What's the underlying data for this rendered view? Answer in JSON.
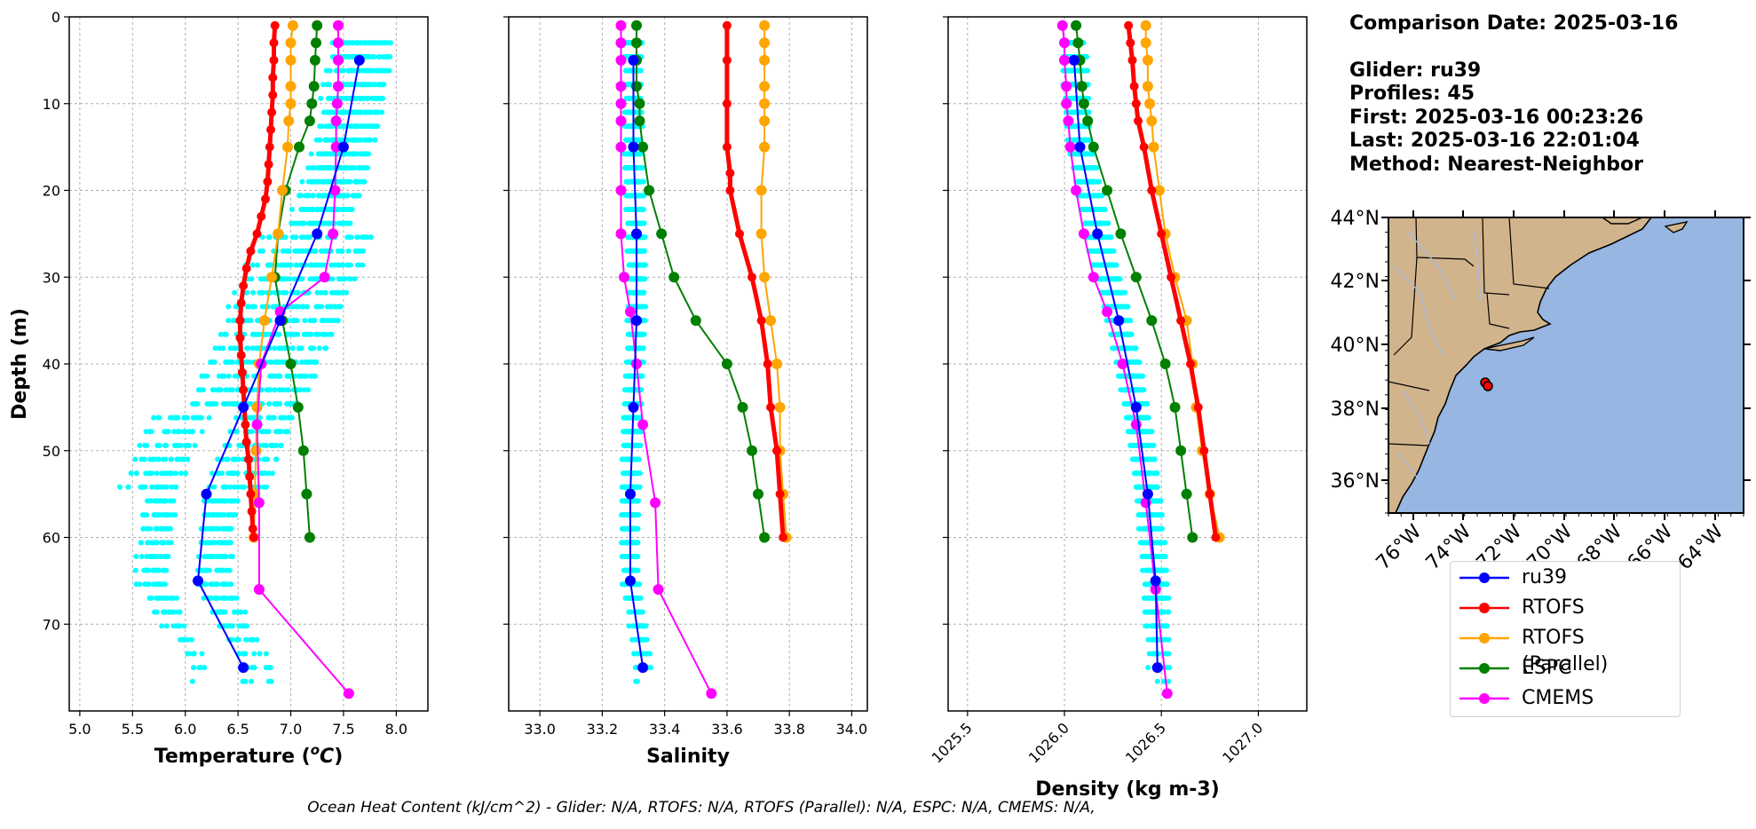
{
  "info": {
    "date_line": "Comparison Date: 2025-03-16",
    "glider_line": "Glider: ru39",
    "profiles_line": "Profiles: 45",
    "first_line": "First: 2025-03-16 00:23:26",
    "last_line": "Last: 2025-03-16 22:01:04",
    "method_line": "Method: Nearest-Neighbor"
  },
  "footer": "Ocean Heat Content (kJ/cm^2) - Glider: N/A,  RTOFS: N/A,  RTOFS (Parallel): N/A,  ESPC: N/A,  CMEMS: N/A,",
  "colors": {
    "ru39": "#0000ff",
    "rtofs": "#ff0000",
    "rtofs_parallel": "#ffa500",
    "espc": "#008000",
    "cmems": "#ff00ff",
    "glider_points": "#00ffff",
    "land": "#d2b48c",
    "ocean": "#97b6e1"
  },
  "legend": [
    "ru39",
    "RTOFS",
    "RTOFS (Parallel)",
    "ESPC",
    "CMEMS"
  ],
  "chart_data": [
    {
      "type": "line",
      "xlabel": "Temperature (oC)",
      "ylabel": "Depth (m)",
      "xlim": [
        4.9,
        8.3
      ],
      "ylim": [
        80,
        0
      ],
      "xticks": [
        "5.0",
        "5.5",
        "6.0",
        "6.5",
        "7.0",
        "7.5",
        "8.0"
      ],
      "yticks": [
        "0",
        "10",
        "20",
        "30",
        "40",
        "50",
        "60",
        "70"
      ],
      "grid": true,
      "series": [
        {
          "name": "ru39",
          "depth": [
            5,
            15,
            25,
            35,
            45,
            55,
            65,
            75
          ],
          "values": [
            7.65,
            7.5,
            7.25,
            6.9,
            6.55,
            6.2,
            6.12,
            6.55
          ]
        },
        {
          "name": "RTOFS",
          "depth": [
            1,
            3,
            5,
            7,
            9,
            11,
            13,
            15,
            17,
            19,
            21,
            23,
            25,
            27,
            29,
            31,
            33,
            35,
            37,
            39,
            41,
            43,
            45,
            47,
            49,
            51,
            53,
            55,
            57,
            59,
            60
          ],
          "values": [
            6.85,
            6.84,
            6.84,
            6.83,
            6.83,
            6.82,
            6.81,
            6.8,
            6.79,
            6.78,
            6.76,
            6.72,
            6.68,
            6.62,
            6.58,
            6.55,
            6.53,
            6.52,
            6.52,
            6.53,
            6.54,
            6.55,
            6.56,
            6.57,
            6.58,
            6.6,
            6.61,
            6.62,
            6.63,
            6.64,
            6.65
          ]
        },
        {
          "name": "RTOFS (Parallel)",
          "depth": [
            1,
            3,
            5,
            8,
            10,
            12,
            15,
            20,
            25,
            30,
            35,
            40,
            45,
            50,
            55,
            60
          ],
          "values": [
            7.02,
            7.0,
            7.0,
            7.0,
            7.0,
            6.98,
            6.97,
            6.92,
            6.88,
            6.82,
            6.75,
            6.7,
            6.68,
            6.67,
            6.66,
            6.65
          ]
        },
        {
          "name": "ESPC",
          "depth": [
            1,
            3,
            5,
            8,
            10,
            12,
            15,
            20,
            25,
            30,
            35,
            40,
            45,
            50,
            55,
            60
          ],
          "values": [
            7.25,
            7.24,
            7.23,
            7.22,
            7.2,
            7.18,
            7.08,
            6.95,
            6.88,
            6.85,
            6.92,
            7.0,
            7.07,
            7.12,
            7.15,
            7.18
          ]
        },
        {
          "name": "CMEMS",
          "depth": [
            1,
            3,
            5,
            8,
            10,
            12,
            15,
            20,
            25,
            30,
            34,
            40,
            47,
            56,
            66,
            78
          ],
          "values": [
            7.45,
            7.45,
            7.45,
            7.45,
            7.44,
            7.43,
            7.43,
            7.42,
            7.4,
            7.32,
            6.9,
            6.72,
            6.68,
            6.7,
            6.7,
            7.55
          ]
        }
      ]
    },
    {
      "type": "line",
      "xlabel": "Salinity",
      "xlim": [
        32.9,
        34.05
      ],
      "ylim": [
        80,
        0
      ],
      "xticks": [
        "33.0",
        "33.2",
        "33.4",
        "33.6",
        "33.8",
        "34.0"
      ],
      "grid": true,
      "series": [
        {
          "name": "ru39",
          "depth": [
            5,
            15,
            25,
            35,
            45,
            55,
            65,
            75
          ],
          "values": [
            33.3,
            33.3,
            33.31,
            33.31,
            33.3,
            33.29,
            33.29,
            33.33
          ]
        },
        {
          "name": "RTOFS",
          "depth": [
            1,
            5,
            10,
            15,
            18,
            20,
            25,
            30,
            35,
            40,
            45,
            50,
            55,
            60
          ],
          "values": [
            33.6,
            33.6,
            33.6,
            33.6,
            33.61,
            33.61,
            33.64,
            33.68,
            33.71,
            33.73,
            33.74,
            33.76,
            33.77,
            33.78
          ]
        },
        {
          "name": "RTOFS (Parallel)",
          "depth": [
            1,
            3,
            5,
            8,
            10,
            12,
            15,
            20,
            25,
            30,
            35,
            40,
            45,
            50,
            55,
            60
          ],
          "values": [
            33.72,
            33.72,
            33.72,
            33.72,
            33.72,
            33.72,
            33.72,
            33.71,
            33.71,
            33.72,
            33.74,
            33.76,
            33.77,
            33.77,
            33.78,
            33.79
          ]
        },
        {
          "name": "ESPC",
          "depth": [
            1,
            3,
            5,
            8,
            10,
            12,
            15,
            20,
            25,
            30,
            35,
            40,
            45,
            50,
            55,
            60
          ],
          "values": [
            33.31,
            33.31,
            33.31,
            33.31,
            33.32,
            33.32,
            33.33,
            33.35,
            33.39,
            33.43,
            33.5,
            33.6,
            33.65,
            33.68,
            33.7,
            33.72
          ]
        },
        {
          "name": "CMEMS",
          "depth": [
            1,
            3,
            5,
            8,
            10,
            12,
            15,
            20,
            25,
            30,
            34,
            40,
            47,
            56,
            66,
            78
          ],
          "values": [
            33.26,
            33.26,
            33.26,
            33.26,
            33.26,
            33.26,
            33.26,
            33.26,
            33.26,
            33.27,
            33.29,
            33.31,
            33.33,
            33.37,
            33.38,
            33.55
          ]
        }
      ]
    },
    {
      "type": "line",
      "xlabel": "Density (kg m-3)",
      "xlim": [
        1025.4,
        1027.25
      ],
      "ylim": [
        80,
        0
      ],
      "xticks": [
        "1025.5",
        "1026.0",
        "1026.5",
        "1027.0"
      ],
      "grid": true,
      "series": [
        {
          "name": "ru39",
          "depth": [
            5,
            15,
            25,
            35,
            45,
            55,
            65,
            75
          ],
          "values": [
            1026.05,
            1026.08,
            1026.17,
            1026.28,
            1026.37,
            1026.43,
            1026.47,
            1026.48
          ]
        },
        {
          "name": "RTOFS",
          "depth": [
            1,
            3,
            5,
            8,
            10,
            12,
            15,
            20,
            25,
            30,
            35,
            40,
            45,
            50,
            55,
            60
          ],
          "values": [
            1026.33,
            1026.34,
            1026.35,
            1026.36,
            1026.37,
            1026.38,
            1026.41,
            1026.45,
            1026.5,
            1026.55,
            1026.6,
            1026.65,
            1026.69,
            1026.72,
            1026.75,
            1026.78
          ]
        },
        {
          "name": "RTOFS (Parallel)",
          "depth": [
            1,
            3,
            5,
            8,
            10,
            12,
            15,
            20,
            25,
            30,
            35,
            40,
            45,
            50,
            55,
            60
          ],
          "values": [
            1026.42,
            1026.42,
            1026.43,
            1026.43,
            1026.44,
            1026.45,
            1026.46,
            1026.49,
            1026.52,
            1026.57,
            1026.63,
            1026.66,
            1026.68,
            1026.71,
            1026.75,
            1026.8
          ]
        },
        {
          "name": "ESPC",
          "depth": [
            1,
            3,
            5,
            8,
            10,
            12,
            15,
            20,
            25,
            30,
            35,
            40,
            45,
            50,
            55,
            60
          ],
          "values": [
            1026.06,
            1026.07,
            1026.08,
            1026.09,
            1026.1,
            1026.12,
            1026.15,
            1026.22,
            1026.29,
            1026.37,
            1026.45,
            1026.52,
            1026.57,
            1026.6,
            1026.63,
            1026.66
          ]
        },
        {
          "name": "CMEMS",
          "depth": [
            1,
            3,
            5,
            8,
            10,
            12,
            15,
            20,
            25,
            30,
            34,
            40,
            47,
            56,
            66,
            78
          ],
          "values": [
            1025.99,
            1026.0,
            1026.0,
            1026.01,
            1026.01,
            1026.02,
            1026.03,
            1026.06,
            1026.1,
            1026.15,
            1026.22,
            1026.3,
            1026.37,
            1026.42,
            1026.47,
            1026.53
          ]
        }
      ]
    },
    {
      "type": "map",
      "lon_ticks": [
        "76°W",
        "74°W",
        "72°W",
        "70°W",
        "68°W",
        "66°W",
        "64°W"
      ],
      "lat_ticks": [
        "44°N",
        "42°N",
        "40°N",
        "38°N",
        "36°N"
      ],
      "glider_position": {
        "lon": -73.3,
        "lat": 39.0
      }
    }
  ]
}
